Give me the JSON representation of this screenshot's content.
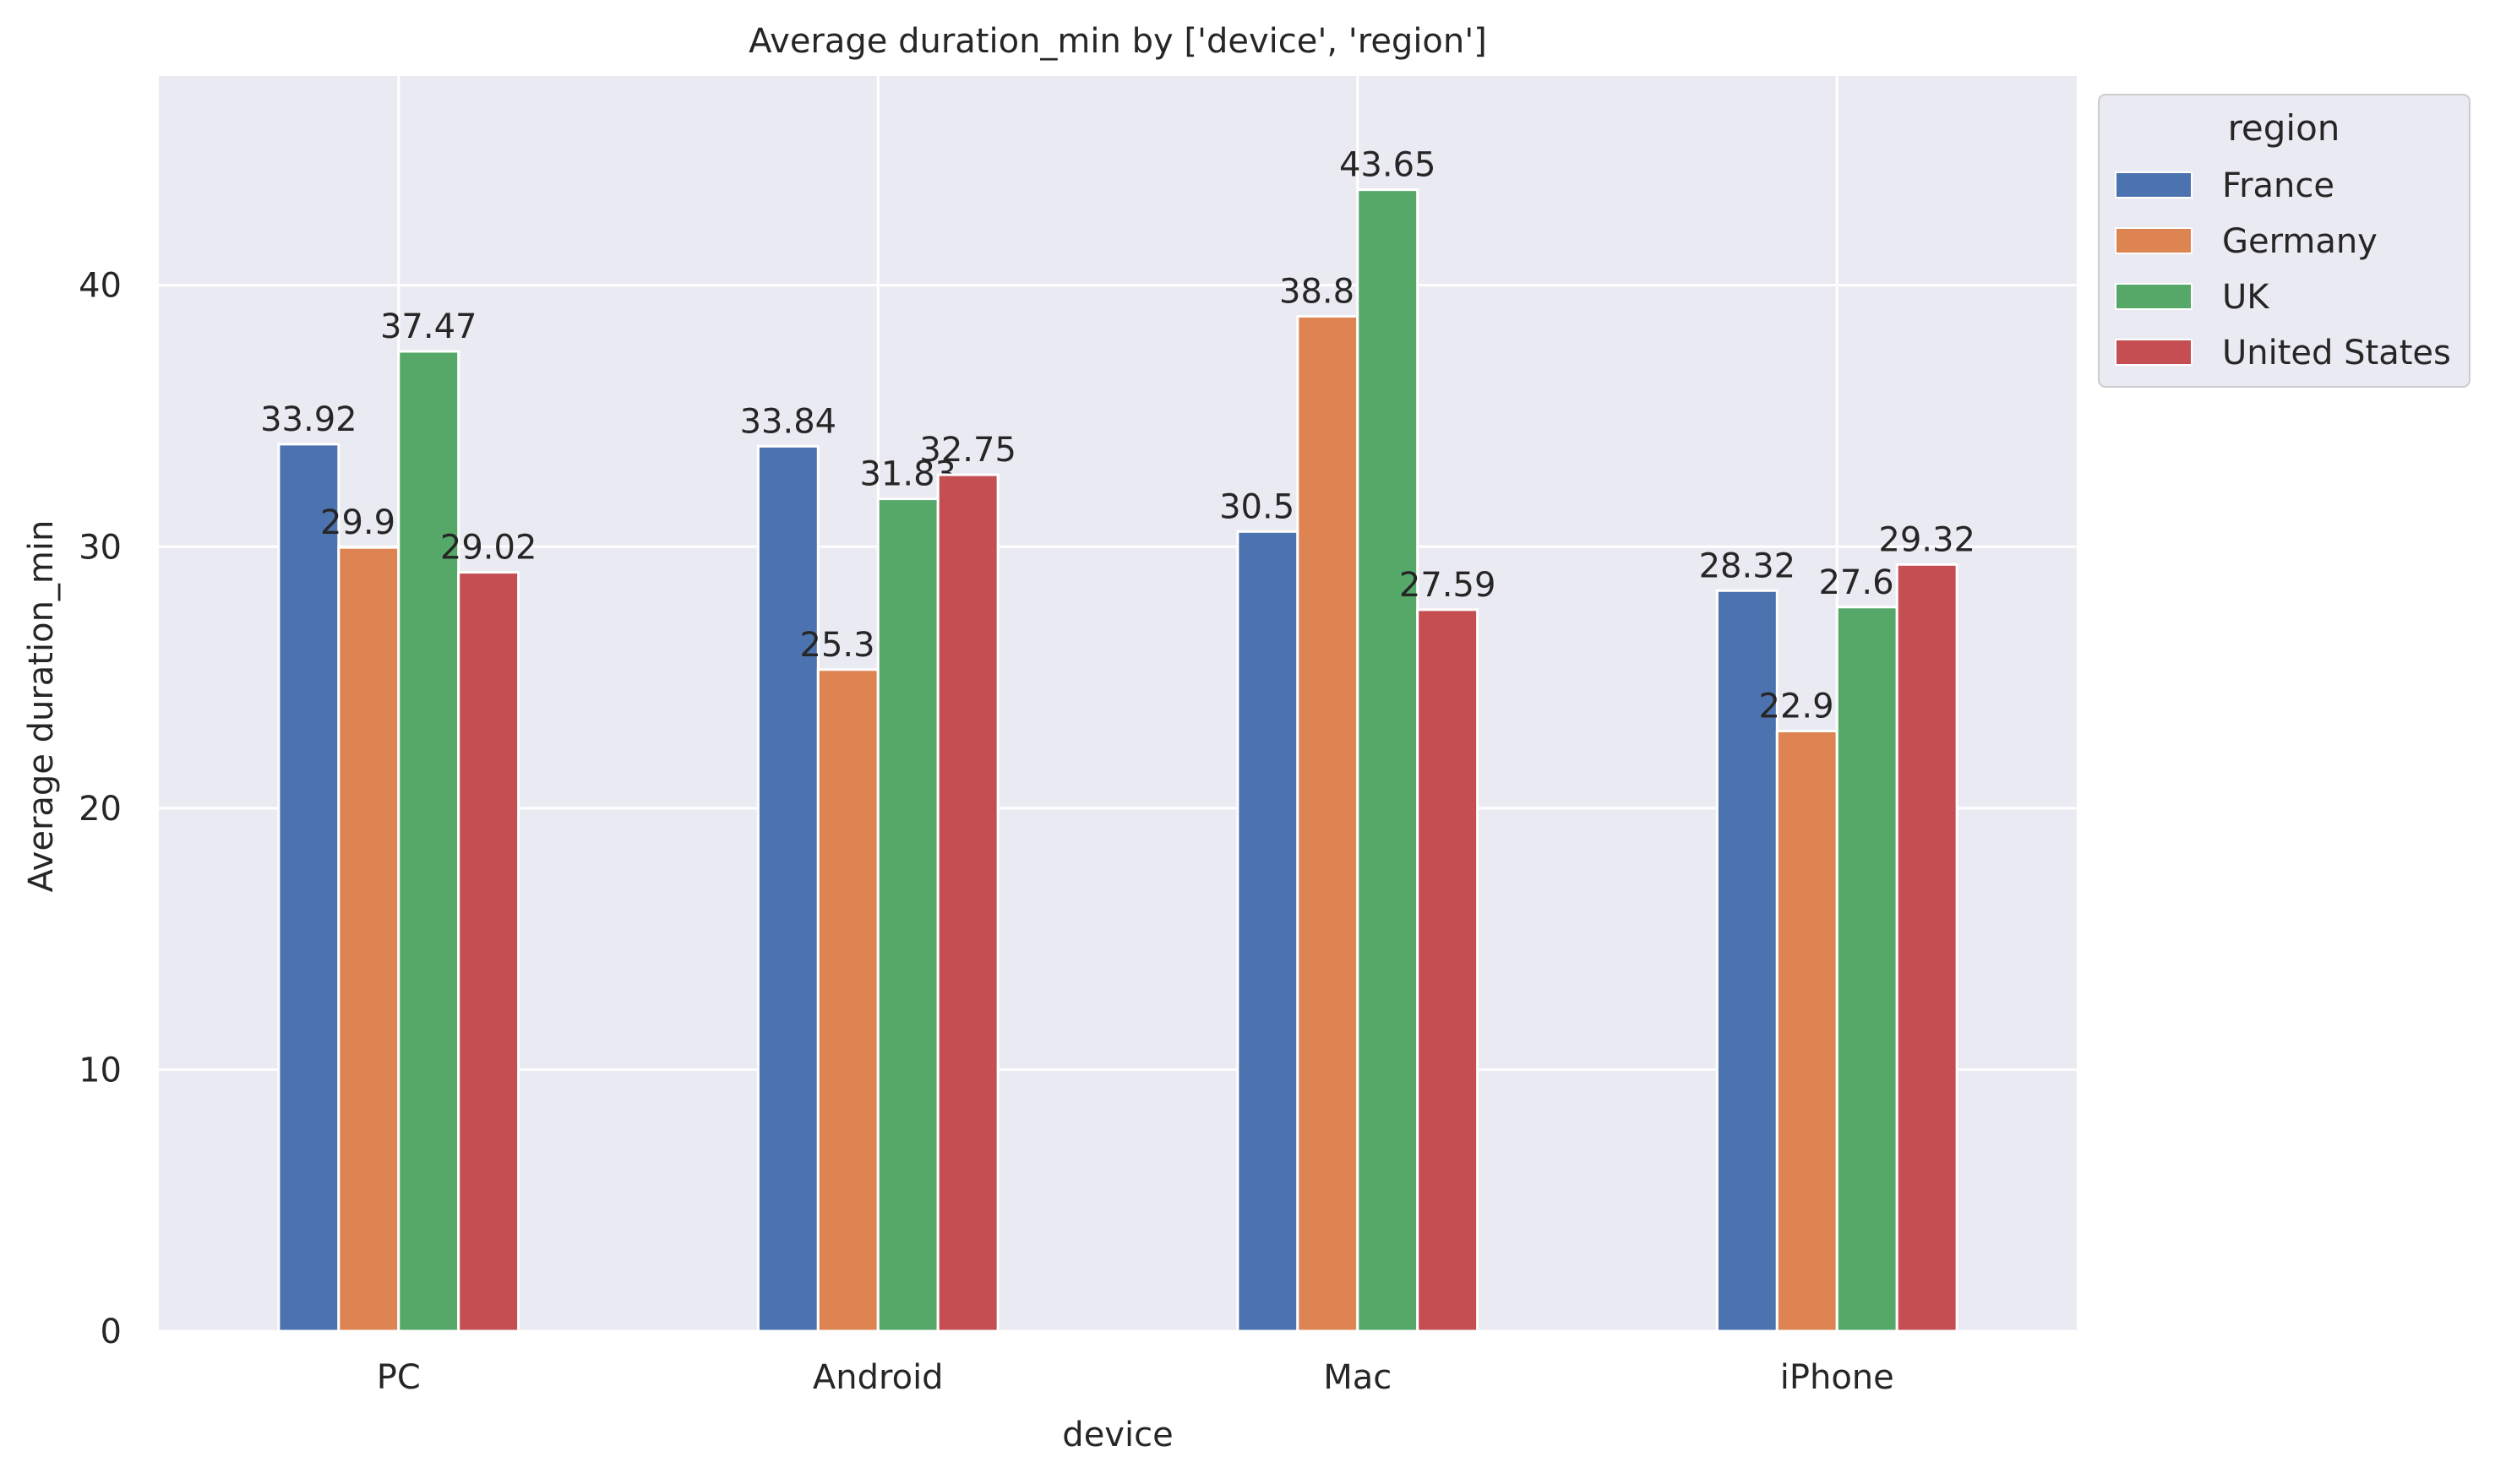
{
  "chart_data": {
    "type": "bar",
    "title": "Average duration_min by ['device', 'region']",
    "xlabel": "device",
    "ylabel": "Average duration_min",
    "categories": [
      "PC",
      "Android",
      "Mac",
      "iPhone"
    ],
    "ylim": [
      0,
      48
    ],
    "yticks": [
      0,
      10,
      20,
      30,
      40
    ],
    "grid": true,
    "legend": {
      "title": "region",
      "placement": "outside top-right"
    },
    "series": [
      {
        "name": "France",
        "color": "#4c72b0",
        "values": [
          33.92,
          33.84,
          30.58,
          28.32
        ]
      },
      {
        "name": "Germany",
        "color": "#dd8452",
        "values": [
          29.97,
          25.3,
          38.81,
          22.95
        ]
      },
      {
        "name": "UK",
        "color": "#55a868",
        "values": [
          37.47,
          31.83,
          43.65,
          27.69
        ]
      },
      {
        "name": "United States",
        "color": "#c44e52",
        "values": [
          29.02,
          32.75,
          27.59,
          29.32
        ]
      }
    ]
  }
}
